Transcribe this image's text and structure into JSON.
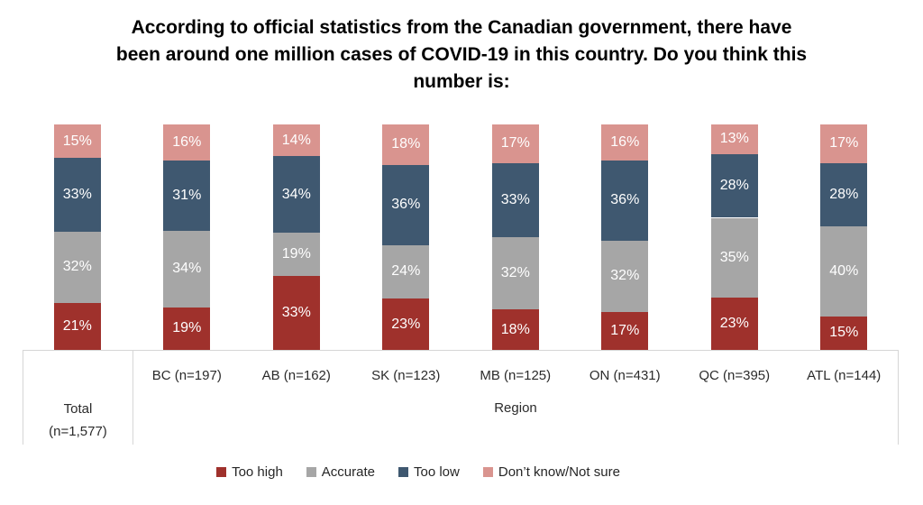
{
  "title": "According to official statistics from the Canadian government, there have been around one million cases of COVID-19 in this country. Do you think this number is:",
  "title_lines": [
    "According to official statistics from the Canadian government, there have",
    "been around one million cases of COVID-19 in this country. Do you think this",
    "number is:"
  ],
  "chart_data": {
    "type": "bar",
    "stacked": true,
    "units": "percent",
    "value_suffix": "%",
    "legend_position": "bottom",
    "title": "According to official statistics from the Canadian government, there have been around one million cases of COVID-19 in this country. Do you think this number is:",
    "categories": [
      "Total (n=1,577)",
      "BC (n=197)",
      "AB (n=162)",
      "SK (n=123)",
      "MB (n=125)",
      "ON (n=431)",
      "QC (n=395)",
      "ATL (n=144)"
    ],
    "series": [
      {
        "name": "Too high",
        "color": "#9F312C",
        "values": [
          21,
          19,
          33,
          23,
          18,
          17,
          23,
          15
        ]
      },
      {
        "name": "Accurate",
        "color": "#A6A6A6",
        "values": [
          32,
          34,
          19,
          24,
          32,
          32,
          35,
          40
        ]
      },
      {
        "name": "Too low",
        "color": "#3F5870",
        "values": [
          33,
          31,
          34,
          36,
          33,
          36,
          28,
          28
        ]
      },
      {
        "name": "Don’t know/Not sure",
        "color": "#D9948F",
        "values": [
          15,
          16,
          14,
          18,
          17,
          16,
          13,
          17
        ]
      }
    ],
    "axis_groups": [
      {
        "label_lines": [
          "Total",
          "(n=1,577)"
        ],
        "span": [
          0,
          0
        ]
      },
      {
        "label": "Region",
        "span": [
          1,
          7
        ]
      }
    ]
  }
}
